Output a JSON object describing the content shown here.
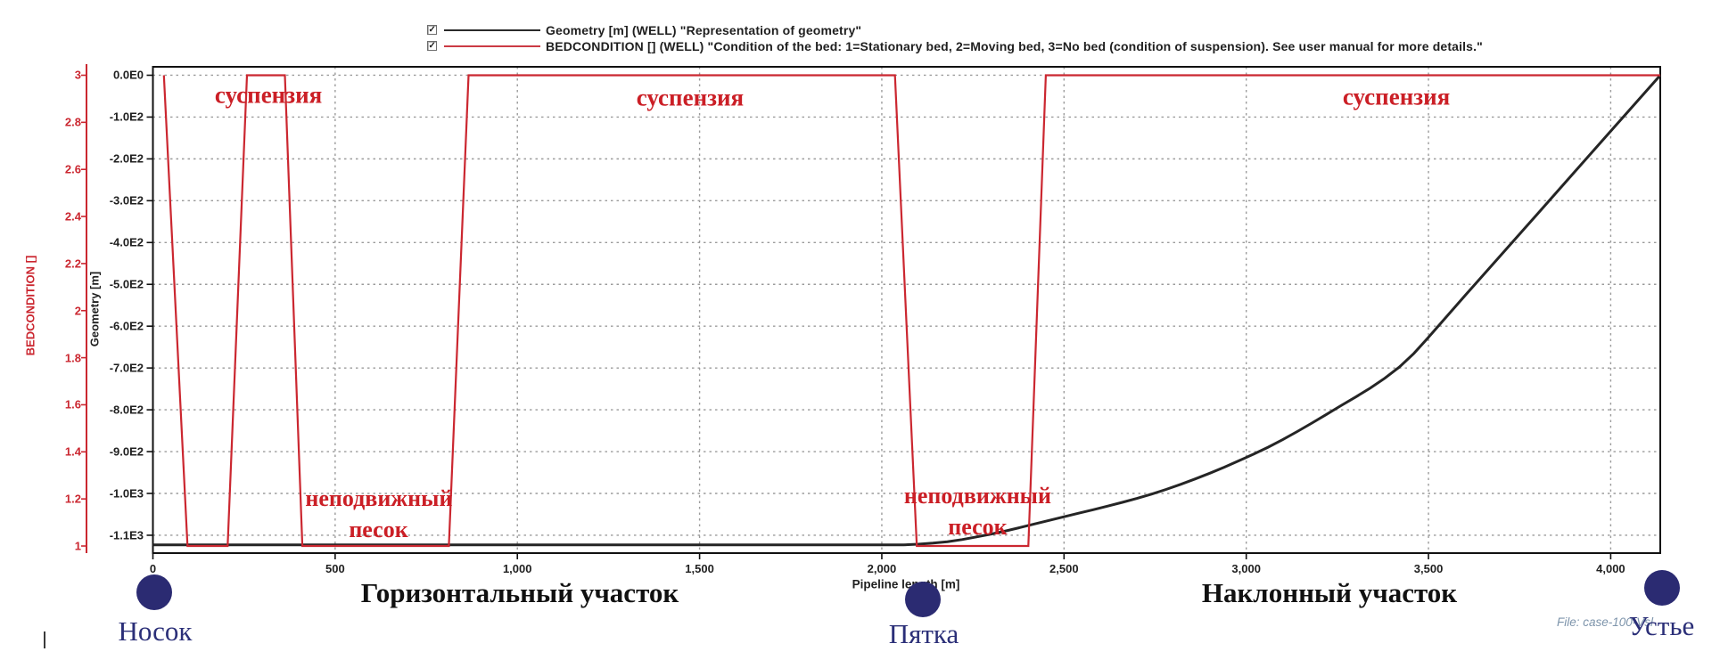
{
  "legend": {
    "items": [
      {
        "checked": true,
        "checkbox_icon": "checked-checkbox",
        "line_color": "#2a2a2a",
        "label": "Geometry [m] (WELL) \"Representation of geometry\""
      },
      {
        "checked": true,
        "checkbox_icon": "checked-checkbox",
        "line_color": "#cb3a44",
        "label": "BEDCONDITION [] (WELL) \"Condition of the bed: 1=Stationary bed, 2=Moving bed, 3=No bed (condition of suspension). See user manual for more details.\""
      }
    ]
  },
  "chart_data": {
    "type": "line",
    "x_axis": {
      "title": "Pipeline length [m]",
      "range": [
        0,
        4136
      ],
      "ticks": [
        0,
        500,
        1000,
        1500,
        2000,
        2500,
        3000,
        3500,
        4000
      ],
      "tick_labels": [
        "0",
        "500",
        "1,000",
        "1,500",
        "2,000",
        "2,500",
        "3,000",
        "3,500",
        "4,000"
      ],
      "grid": true
    },
    "y_axis_bedcondition": {
      "title": "BEDCONDITION []",
      "color": "#cb2730",
      "range": [
        0.9698,
        3.0359
      ],
      "ticks": [
        3,
        2.8,
        2.6,
        2.4,
        2.2,
        2,
        1.8,
        1.6,
        1.4,
        1.2,
        1
      ],
      "tick_labels": [
        "3",
        "2.8",
        "2.6",
        "2.4",
        "2.2",
        "2",
        "1.8",
        "1.6",
        "1.4",
        "1.2",
        "1"
      ]
    },
    "y_axis_geometry": {
      "title": "Geometry [m]",
      "color": "#1f1f1f",
      "range": [
        -1142.7,
        20.2
      ],
      "ticks": [
        0,
        -100,
        -200,
        -300,
        -400,
        -500,
        -600,
        -700,
        -800,
        -900,
        -1000,
        -1100
      ],
      "tick_labels": [
        "0.0E0",
        "-1.0E2",
        "-2.0E2",
        "-3.0E2",
        "-4.0E2",
        "-5.0E2",
        "-6.0E2",
        "-7.0E2",
        "-8.0E2",
        "-9.0E2",
        "-1.0E3",
        "-1.1E3"
      ],
      "grid": true
    },
    "series": [
      {
        "name": "Geometry [m] (WELL)",
        "axis": "geometry",
        "color": "#252525",
        "width": 3,
        "points": [
          [
            0,
            -1123
          ],
          [
            2060,
            -1123
          ],
          [
            2100,
            -1121.5
          ],
          [
            2140,
            -1118.8
          ],
          [
            2180,
            -1115.4
          ],
          [
            2220,
            -1110.4
          ],
          [
            2260,
            -1103.9
          ],
          [
            2300,
            -1097.1
          ],
          [
            2340,
            -1089.6
          ],
          [
            2380,
            -1081.4
          ],
          [
            2420,
            -1072.9
          ],
          [
            2460,
            -1064.3
          ],
          [
            2500,
            -1055.7
          ],
          [
            2540,
            -1047.3
          ],
          [
            2580,
            -1038.9
          ],
          [
            2620,
            -1030.3
          ],
          [
            2660,
            -1021.4
          ],
          [
            2700,
            -1011.9
          ],
          [
            2740,
            -1001.6
          ],
          [
            2780,
            -990.4
          ],
          [
            2820,
            -978.3
          ],
          [
            2860,
            -965.3
          ],
          [
            2900,
            -951.6
          ],
          [
            2940,
            -937.1
          ],
          [
            2980,
            -921.9
          ],
          [
            3020,
            -906.1
          ],
          [
            3060,
            -889.5
          ],
          [
            3100,
            -871.4
          ],
          [
            3140,
            -852
          ],
          [
            3180,
            -831.8
          ],
          [
            3220,
            -811
          ],
          [
            3260,
            -790.1
          ],
          [
            3300,
            -769.5
          ],
          [
            3340,
            -748.2
          ],
          [
            3380,
            -724.7
          ],
          [
            3420,
            -697.8
          ],
          [
            3460,
            -665.1
          ],
          [
            3500,
            -626.8
          ],
          [
            3600,
            -527.2
          ],
          [
            3700,
            -428.9
          ],
          [
            3800,
            -330.5
          ],
          [
            3900,
            -232.1
          ],
          [
            4000,
            -133.8
          ],
          [
            4136,
            0
          ]
        ]
      },
      {
        "name": "BEDCONDITION [] (WELL)",
        "axis": "bedcondition",
        "color": "#cb2730",
        "width": 2.2,
        "points": [
          [
            30,
            3
          ],
          [
            95,
            1
          ],
          [
            205,
            1
          ],
          [
            258,
            3
          ],
          [
            362,
            3
          ],
          [
            410,
            1
          ],
          [
            812,
            1
          ],
          [
            866,
            3
          ],
          [
            2036,
            3
          ],
          [
            2096,
            1
          ],
          [
            2402,
            1
          ],
          [
            2450,
            3
          ],
          [
            4136,
            3
          ]
        ]
      }
    ],
    "annotations": [
      {
        "text": "суспензия",
        "x": 317,
        "y": 2.915,
        "size": 27
      },
      {
        "text": "суспензия",
        "x": 1474,
        "y": 2.904,
        "size": 27
      },
      {
        "text": "суспензия",
        "x": 3412,
        "y": 2.909,
        "size": 27
      },
      {
        "text": "неподвижный",
        "x": 620,
        "y": 1.201,
        "size": 26
      },
      {
        "text": "песок",
        "x": 619,
        "y": 1.068,
        "size": 26
      },
      {
        "text": "неподвижный",
        "x": 2263,
        "y": 1.212,
        "size": 26
      },
      {
        "text": "песок",
        "x": 2263,
        "y": 1.08,
        "size": 26
      }
    ],
    "legend_position": "top"
  },
  "section_labels": [
    {
      "label": "Горизонтальный участок"
    },
    {
      "label": "Наклонный участок"
    }
  ],
  "markers": [
    {
      "label": "Носок"
    },
    {
      "label": "Пятка"
    },
    {
      "label": "Устье"
    }
  ],
  "file_label": "File: case-100-Vsl"
}
